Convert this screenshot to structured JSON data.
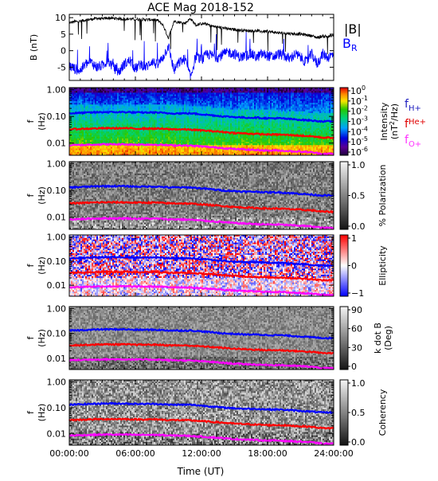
{
  "chart_data": {
    "type": "heatmap",
    "title": "ACE Mag 2018-152",
    "xlabel": "Time (UT)",
    "x_ticks": [
      "00:00:00",
      "06:00:00",
      "12:00:00",
      "18:00:00",
      "24:00:00"
    ],
    "x_tick_hours": [
      0,
      6,
      12,
      18,
      24
    ],
    "xlim_hours": [
      0,
      24
    ],
    "panels": [
      {
        "name": "field",
        "type": "line",
        "ylabel": "B (nT)",
        "ylim": [
          -9,
          11
        ],
        "y_ticks": [
          10,
          5,
          0,
          -5
        ],
        "legend": [
          "|B|",
          "BR"
        ],
        "series": [
          {
            "name": "|B|",
            "color": "#000000",
            "t": [
              0,
              0.5,
              1,
              1.5,
              2,
              2.5,
              3,
              3.5,
              4,
              4.5,
              5,
              5.5,
              6,
              6.5,
              7,
              7.5,
              8,
              8.5,
              9,
              9.5,
              10,
              10.5,
              11,
              11.5,
              12,
              12.5,
              13,
              13.5,
              14,
              14.5,
              15,
              15.5,
              16,
              16.5,
              17,
              17.5,
              18,
              18.5,
              19,
              19.5,
              20,
              20.5,
              21,
              21.5,
              22,
              22.5,
              23,
              23.5,
              24
            ],
            "values": [
              8.4,
              8.8,
              8.9,
              9.3,
              9.5,
              9.8,
              9.6,
              9.9,
              9.8,
              9.7,
              9.6,
              9.6,
              9.5,
              9.5,
              9.4,
              9.4,
              9.2,
              7.8,
              3.8,
              8.9,
              8.6,
              8.3,
              9.7,
              7.7,
              8.2,
              8.0,
              7.4,
              7.1,
              6.9,
              6.5,
              6.4,
              6.2,
              6.1,
              6.0,
              6.0,
              5.8,
              5.8,
              5.6,
              5.4,
              5.3,
              5.2,
              5.1,
              5.0,
              4.8,
              4.5,
              4.0,
              4.4,
              4.3,
              4.6
            ]
          },
          {
            "name": "BR",
            "color": "#0000ff",
            "t": [
              0,
              0.5,
              1,
              1.5,
              2,
              2.5,
              3,
              3.5,
              4,
              4.5,
              5,
              5.5,
              6,
              6.5,
              7,
              7.5,
              8,
              8.5,
              9,
              9.5,
              10,
              10.5,
              11,
              11.5,
              12,
              12.5,
              13,
              13.5,
              14,
              14.5,
              15,
              15.5,
              16,
              16.5,
              17,
              17.5,
              18,
              18.5,
              19,
              19.5,
              20,
              20.5,
              21,
              21.5,
              22,
              22.5,
              23,
              23.5,
              24
            ],
            "values": [
              -4.5,
              -5.5,
              -6.0,
              -4.0,
              -3.5,
              -5.0,
              -4.5,
              -3.0,
              -5.0,
              -6.5,
              -4.0,
              -3.0,
              -5.5,
              -4.0,
              -5.0,
              -3.0,
              -4.5,
              -2.0,
              1.5,
              -6.0,
              -3.5,
              -2.5,
              -8.0,
              -1.5,
              -3.0,
              -1.0,
              -1.5,
              -2.0,
              -1.0,
              -0.5,
              -1.0,
              -2.0,
              -1.5,
              -1.0,
              -2.0,
              -1.0,
              -1.5,
              -2.0,
              -1.0,
              -1.5,
              -2.5,
              -1.0,
              -2.0,
              -3.5,
              -1.0,
              -4.0,
              -1.0,
              -2.0,
              -1.0
            ]
          }
        ]
      },
      {
        "name": "intensity",
        "type": "heatmap",
        "ylabel": "f (Hz)",
        "ylim": [
          0.0035,
          1.2
        ],
        "y_scale": "log",
        "y_ticks": [
          "1.00",
          "0.10",
          "0.01"
        ],
        "colorbar": {
          "label": "Intensity (nT²/Hz)",
          "label_parts": [
            "Intensity",
            "(nT",
            "2",
            "/Hz)"
          ],
          "colormap": "rainbow",
          "ticks": [
            {
              "base": "10",
              "exp": "0"
            },
            {
              "base": "10",
              "exp": "-1"
            },
            {
              "base": "10",
              "exp": "-2"
            },
            {
              "base": "10",
              "exp": "-3"
            },
            {
              "base": "10",
              "exp": "-4"
            },
            {
              "base": "10",
              "exp": "-5"
            },
            {
              "base": "10",
              "exp": "-6"
            }
          ]
        },
        "legend": [
          {
            "base": "f",
            "sub": "H+",
            "color": "#2020c0"
          },
          {
            "base": "f",
            "sub": "He+",
            "color": "#e00000"
          },
          {
            "base": "f",
            "sub": "O+",
            "color": "#ff30ff"
          }
        ]
      },
      {
        "name": "polarization",
        "type": "heatmap",
        "ylabel": "f (Hz)",
        "y_ticks": [
          "1.00",
          "0.10",
          "0.01"
        ],
        "colorbar": {
          "label": "% Polarization",
          "colormap": "gray",
          "ticks": [
            "1.0",
            "0.5",
            "0.0"
          ]
        }
      },
      {
        "name": "ellipticity",
        "type": "heatmap",
        "ylabel": "f (Hz)",
        "y_ticks": [
          "1.00",
          "0.10",
          "0.01"
        ],
        "colorbar": {
          "label": "Ellipticity",
          "colormap": "blue-white-red",
          "ticks": [
            "1",
            "0",
            "−1"
          ]
        }
      },
      {
        "name": "wave-normal-angle",
        "type": "heatmap",
        "ylabel": "f (Hz)",
        "y_ticks": [
          "1.00",
          "0.10",
          "0.01"
        ],
        "colorbar": {
          "label": "k dot B (Deg)",
          "label_parts": [
            "k dot B",
            "(Deg)"
          ],
          "colormap": "gray",
          "ticks": [
            "90",
            "60",
            "30",
            "0"
          ]
        }
      },
      {
        "name": "coherency",
        "type": "heatmap",
        "ylabel": "f (Hz)",
        "y_ticks": [
          "1.00",
          "0.10",
          "0.01"
        ],
        "colorbar": {
          "label": "Coherency",
          "colormap": "gray",
          "ticks": [
            "1.0",
            "0.5",
            "0.0"
          ]
        }
      }
    ],
    "gyrofrequency_lines": [
      {
        "name": "fH+",
        "color": "#0000ff",
        "t": [
          0,
          1,
          2,
          3,
          4,
          5,
          6,
          7,
          8,
          9,
          10,
          11,
          12,
          13,
          14,
          15,
          16,
          17,
          18,
          19,
          20,
          21,
          22,
          23,
          24
        ],
        "values": [
          0.13,
          0.135,
          0.14,
          0.145,
          0.145,
          0.145,
          0.14,
          0.14,
          0.14,
          0.13,
          0.13,
          0.13,
          0.12,
          0.11,
          0.1,
          0.095,
          0.09,
          0.09,
          0.085,
          0.085,
          0.08,
          0.075,
          0.07,
          0.065,
          0.065
        ]
      },
      {
        "name": "fHe+",
        "color": "#ff0000",
        "t": [
          0,
          1,
          2,
          3,
          4,
          5,
          6,
          7,
          8,
          9,
          10,
          11,
          12,
          13,
          14,
          15,
          16,
          17,
          18,
          19,
          20,
          21,
          22,
          23,
          24
        ],
        "values": [
          0.033,
          0.034,
          0.035,
          0.036,
          0.036,
          0.036,
          0.035,
          0.035,
          0.035,
          0.033,
          0.033,
          0.032,
          0.03,
          0.028,
          0.026,
          0.024,
          0.023,
          0.022,
          0.021,
          0.021,
          0.02,
          0.019,
          0.018,
          0.016,
          0.016
        ]
      },
      {
        "name": "fO+",
        "color": "#ff00ff",
        "t": [
          0,
          1,
          2,
          3,
          4,
          5,
          6,
          7,
          8,
          9,
          10,
          11,
          12,
          13,
          14,
          15,
          16,
          17,
          18,
          19,
          20,
          21,
          22,
          23,
          24
        ],
        "values": [
          0.0083,
          0.0085,
          0.0088,
          0.009,
          0.009,
          0.009,
          0.0088,
          0.0088,
          0.0088,
          0.0083,
          0.0083,
          0.008,
          0.0075,
          0.007,
          0.0065,
          0.006,
          0.0058,
          0.0055,
          0.0053,
          0.0053,
          0.005,
          0.0048,
          0.0045,
          0.004,
          0.004
        ]
      }
    ]
  }
}
